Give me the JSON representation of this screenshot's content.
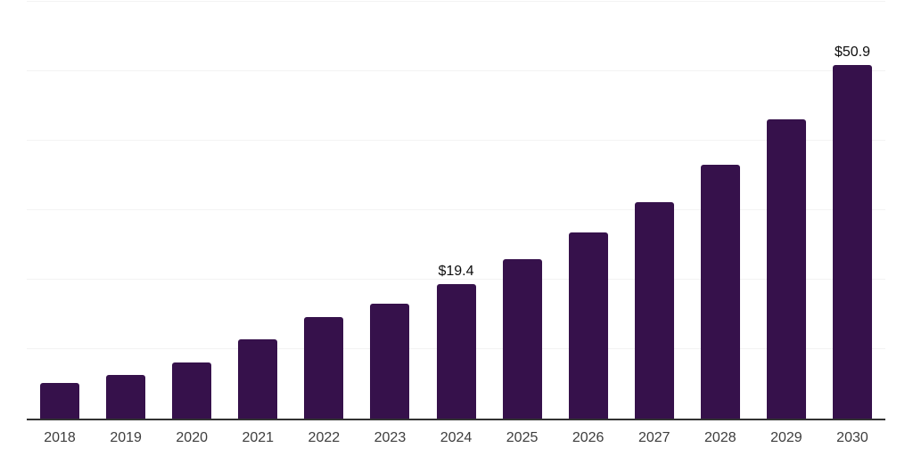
{
  "chart_data": {
    "type": "bar",
    "title": "",
    "categories": [
      "2018",
      "2019",
      "2020",
      "2021",
      "2022",
      "2023",
      "2024",
      "2025",
      "2026",
      "2027",
      "2028",
      "2029",
      "2030"
    ],
    "values": [
      5.1,
      6.3,
      8.1,
      11.4,
      14.6,
      16.6,
      19.4,
      22.9,
      26.8,
      31.1,
      36.6,
      43.1,
      50.9
    ],
    "labels": [
      "",
      "",
      "",
      "",
      "",
      "",
      "$19.4",
      "",
      "",
      "",
      "",
      "",
      "$50.9"
    ],
    "ylim": [
      0,
      60
    ],
    "grid_step": 10,
    "grid_on": true,
    "legend": "none",
    "colors": {
      "bar": "#36114B",
      "gridline": "#f3f3f3",
      "axis": "#333333",
      "tick_label": "#3d3d3d",
      "value_label": "#0d0d0d",
      "background": "#ffffff"
    }
  }
}
